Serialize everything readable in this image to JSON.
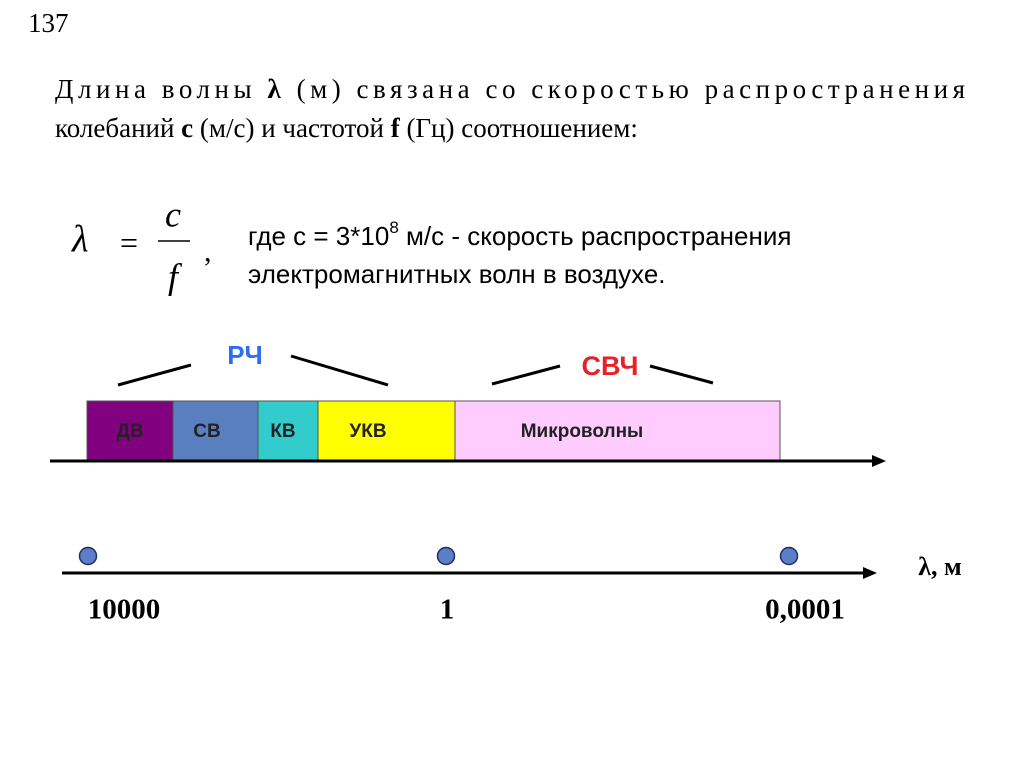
{
  "page_number": "137",
  "paragraph": {
    "lines": [
      [
        "Длина волны ",
        "λ",
        " (м) связана со скоростью распространения"
      ],
      [
        "колебаний ",
        "c",
        " (м/с) и частотой ",
        "f",
        " (Гц) соотношением:"
      ]
    ]
  },
  "formula": {
    "lhs": "λ",
    "equals": "=",
    "numerator": "c",
    "denominator": "f",
    "comma": ","
  },
  "note": {
    "line1": "где  c = 3*10",
    "superscript": "8",
    "line1_rest": " м/с - скорость распространения",
    "line2": "электромагнитных волн в воздухе."
  },
  "groups": [
    "РЧ",
    "СВЧ"
  ],
  "bands": [
    "ДВ",
    "СВ",
    "КВ",
    "УКВ",
    "Микроволны"
  ],
  "scale": {
    "axis_label": "λ, м",
    "labels": [
      "10000",
      "1",
      "0,0001"
    ]
  }
}
